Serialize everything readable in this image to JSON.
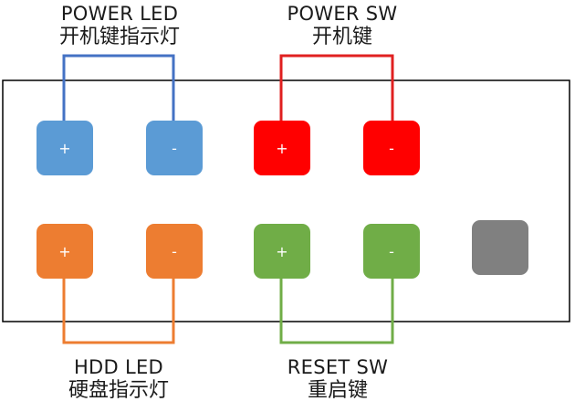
{
  "labels": {
    "power_led": {
      "en": "POWER LED",
      "zh": "开机键指示灯"
    },
    "power_sw": {
      "en": "POWER SW",
      "zh": "开机键"
    },
    "hdd_led": {
      "en": "HDD LED",
      "zh": "硬盘指示灯"
    },
    "reset_sw": {
      "en": "RESET SW",
      "zh": "重启键"
    }
  },
  "pins": {
    "power_led_plus": {
      "sign": "+",
      "color": "#5b9bd5",
      "wire": "#4472c4"
    },
    "power_led_minus": {
      "sign": "-",
      "color": "#5b9bd5",
      "wire": "#4472c4"
    },
    "power_sw_plus": {
      "sign": "+",
      "color": "#ff0000",
      "wire": "#e02020"
    },
    "power_sw_minus": {
      "sign": "-",
      "color": "#ff0000",
      "wire": "#e02020"
    },
    "hdd_led_plus": {
      "sign": "+",
      "color": "#ed7d31",
      "wire": "#ed7d31"
    },
    "hdd_led_minus": {
      "sign": "-",
      "color": "#ed7d31",
      "wire": "#ed7d31"
    },
    "reset_sw_plus": {
      "sign": "+",
      "color": "#70ad47",
      "wire": "#70ad47"
    },
    "reset_sw_minus": {
      "sign": "-",
      "color": "#70ad47",
      "wire": "#70ad47"
    },
    "unused_pin": {
      "sign": "",
      "color": "#808080"
    }
  }
}
